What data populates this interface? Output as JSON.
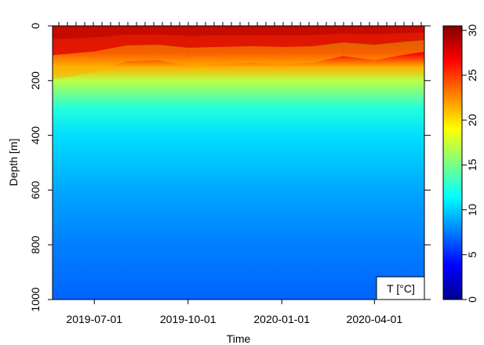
{
  "chart_data": {
    "type": "heatmap",
    "xlabel": "Time",
    "ylabel": "Depth [m]",
    "legend_label": "T [°C]",
    "legend_placement": "bottom-right",
    "x_ticks": [
      "2019-07-01",
      "2019-10-01",
      "2020-01-01",
      "2020-04-01"
    ],
    "x_range": [
      "2019-05-21",
      "2020-05-20"
    ],
    "y_ticks": [
      0,
      200,
      400,
      600,
      800,
      1000
    ],
    "ylim": [
      0,
      1000
    ],
    "y_reversed": true,
    "colorbar": {
      "ticks": [
        0,
        5,
        10,
        15,
        20,
        25,
        30
      ],
      "range": [
        0,
        30.5
      ],
      "colors": [
        "#00008f",
        "#0000ff",
        "#0080ff",
        "#00ffff",
        "#80ff80",
        "#ffff00",
        "#ff8000",
        "#ff0000",
        "#800000"
      ]
    },
    "vertical_profile": [
      {
        "depth": 0,
        "temp": 29.8
      },
      {
        "depth": 50,
        "temp": 29.2
      },
      {
        "depth": 100,
        "temp": 27.0
      },
      {
        "depth": 150,
        "temp": 21.5
      },
      {
        "depth": 200,
        "temp": 17.0
      },
      {
        "depth": 300,
        "temp": 12.5
      },
      {
        "depth": 400,
        "temp": 10.5
      },
      {
        "depth": 600,
        "temp": 8.8
      },
      {
        "depth": 800,
        "temp": 7.6
      },
      {
        "depth": 1000,
        "temp": 6.8
      }
    ],
    "thermocline_depth": [
      {
        "date": "2019-05-21",
        "depth_m": 195
      },
      {
        "date": "2019-06-15",
        "depth_m": 180
      },
      {
        "date": "2019-07-01",
        "depth_m": 170
      },
      {
        "date": "2019-08-01",
        "depth_m": 130
      },
      {
        "date": "2019-09-01",
        "depth_m": 125
      },
      {
        "date": "2019-10-01",
        "depth_m": 145
      },
      {
        "date": "2019-11-01",
        "depth_m": 140
      },
      {
        "date": "2019-12-01",
        "depth_m": 135
      },
      {
        "date": "2020-01-01",
        "depth_m": 140
      },
      {
        "date": "2020-02-01",
        "depth_m": 135
      },
      {
        "date": "2020-03-01",
        "depth_m": 110
      },
      {
        "date": "2020-04-01",
        "depth_m": 125
      },
      {
        "date": "2020-05-01",
        "depth_m": 105
      },
      {
        "date": "2020-05-20",
        "depth_m": 95
      }
    ]
  }
}
